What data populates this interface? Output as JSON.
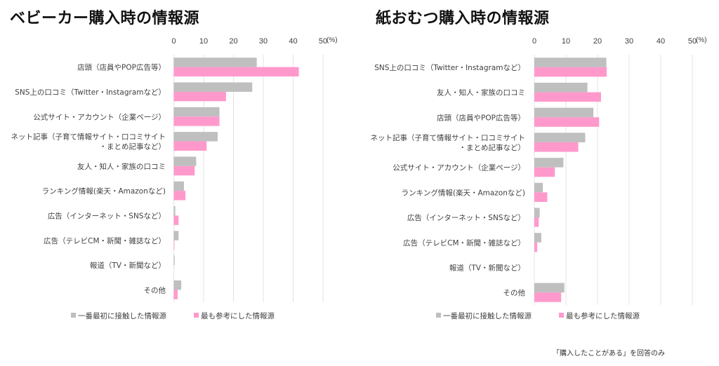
{
  "colors": {
    "first_contact": "#bfbfbf",
    "most_referenced": "#ff99cc",
    "grid": "#e3e3e3",
    "axis_text": "#404040"
  },
  "footnote": "「購入したことがある」を回答のみ",
  "chart_data": [
    {
      "type": "bar",
      "orientation": "horizontal",
      "title": "ベビーカー購入時の情報源",
      "xlabel": "",
      "unit_label": "(%)",
      "xlim": [
        0,
        50
      ],
      "xticks": [
        "0",
        "10",
        "20",
        "30",
        "40",
        "50"
      ],
      "grid": true,
      "legend_position": "bottom",
      "categories": [
        "店頭（店員やPOP広告等）",
        "SNS上の口コミ（Twitter・Instagramなど）",
        "公式サイト・アカウント（企業ページ）",
        "ネット記事（子育て情報サイト・口コミサイト\n・まとめ記事など）",
        "友人・知人・家族の口コミ",
        "ランキング情報(楽天・Amazonなど)",
        "広告（インターネット・SNSなど）",
        "広告（テレビCM・新聞・雑誌など）",
        "報道（TV・新聞など）",
        "その他"
      ],
      "series": [
        {
          "name": "一番最初に接触した情報源",
          "color": "#bfbfbf",
          "values": [
            27.8,
            26.3,
            15.3,
            14.7,
            7.5,
            3.4,
            0.5,
            1.6,
            0.3,
            2.5
          ]
        },
        {
          "name": "最も参考にした情報源",
          "color": "#ff99cc",
          "values": [
            41.9,
            17.5,
            15.3,
            11.0,
            7.0,
            3.9,
            1.6,
            0.2,
            0.0,
            1.3
          ]
        }
      ]
    },
    {
      "type": "bar",
      "orientation": "horizontal",
      "title": "紙おむつ購入時の情報源",
      "xlabel": "",
      "unit_label": "(%)",
      "xlim": [
        0,
        50
      ],
      "xticks": [
        "0",
        "10",
        "20",
        "30",
        "40",
        "50"
      ],
      "grid": true,
      "legend_position": "bottom",
      "categories": [
        "SNS上の口コミ（Twitter・Instagramなど）",
        "友人・知人・家族の口コミ",
        "店頭（店員やPOP広告等）",
        "ネット記事（子育て情報サイト・口コミサイト\n・まとめ記事など）",
        "公式サイト・アカウント（企業ページ）",
        "ランキング情報(楽天・Amazonなど)",
        "広告（インターネット・SNSなど）",
        "広告（テレビCM・新聞・雑誌など）",
        "報道（TV・新聞など）",
        "その他"
      ],
      "series": [
        {
          "name": "一番最初に接触した情報源",
          "color": "#bfbfbf",
          "values": [
            22.8,
            16.8,
            18.7,
            16.1,
            9.2,
            2.7,
            1.7,
            2.2,
            0.0,
            9.5
          ]
        },
        {
          "name": "最も参考にした情報源",
          "color": "#ff99cc",
          "values": [
            22.9,
            21.1,
            20.5,
            13.9,
            6.5,
            4.1,
            1.4,
            0.9,
            0.0,
            8.5
          ]
        }
      ]
    }
  ]
}
